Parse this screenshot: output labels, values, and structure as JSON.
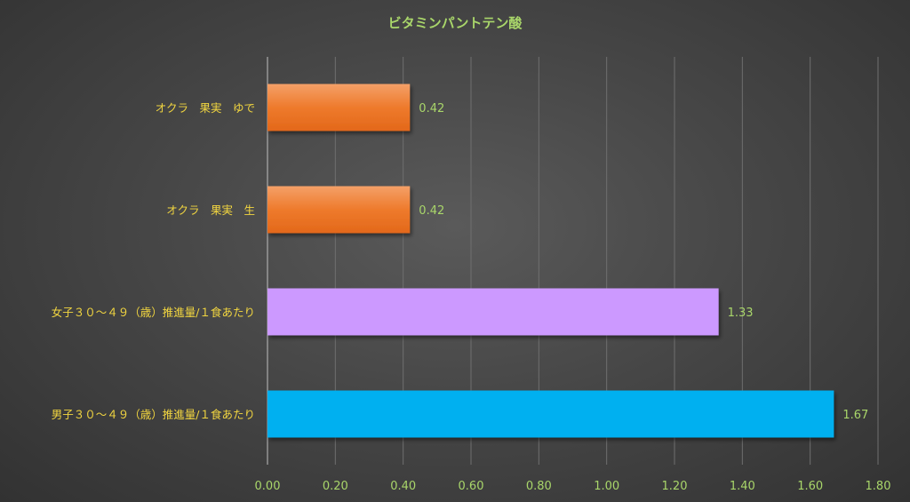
{
  "chart_data": {
    "type": "bar",
    "orientation": "horizontal",
    "title": "ビタミンパントテン酸",
    "categories": [
      "オクラ　果実　ゆで",
      "オクラ　果実　生",
      "女子３０～４９（歳）推進量/１食あたり",
      "男子３０～４９（歳）推進量/１食あたり"
    ],
    "values": [
      0.42,
      0.42,
      1.33,
      1.67
    ],
    "value_labels": [
      "0.42",
      "0.42",
      "1.33",
      "1.67"
    ],
    "bar_colors": [
      "#ee7320",
      "#ee7320",
      "#cc99ff",
      "#00b0f0"
    ],
    "xlim": [
      0,
      1.8
    ],
    "xticks": [
      "0.00",
      "0.20",
      "0.40",
      "0.60",
      "0.80",
      "1.00",
      "1.20",
      "1.40",
      "1.60",
      "1.80"
    ],
    "xlabel": "",
    "ylabel": "",
    "grid": true,
    "legend": "none"
  }
}
